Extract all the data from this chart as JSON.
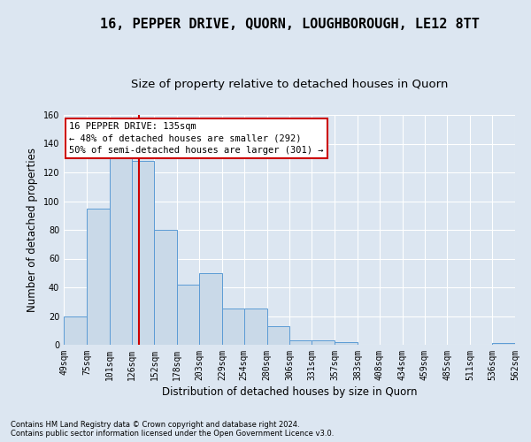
{
  "title": "16, PEPPER DRIVE, QUORN, LOUGHBOROUGH, LE12 8TT",
  "subtitle": "Size of property relative to detached houses in Quorn",
  "xlabel": "Distribution of detached houses by size in Quorn",
  "ylabel": "Number of detached properties",
  "footnote": "Contains HM Land Registry data © Crown copyright and database right 2024.\nContains public sector information licensed under the Open Government Licence v3.0.",
  "bar_edges": [
    49,
    75,
    101,
    126,
    152,
    178,
    203,
    229,
    254,
    280,
    306,
    331,
    357,
    383,
    408,
    434,
    459,
    485,
    511,
    536,
    562
  ],
  "bar_heights": [
    20,
    95,
    130,
    128,
    80,
    42,
    50,
    25,
    25,
    13,
    3,
    3,
    2,
    0,
    0,
    0,
    0,
    0,
    0,
    1
  ],
  "bar_color": "#c9d9e8",
  "bar_edge_color": "#5b9bd5",
  "vline_x": 135,
  "vline_color": "#cc0000",
  "annotation_line1": "16 PEPPER DRIVE: 135sqm",
  "annotation_line2": "← 48% of detached houses are smaller (292)",
  "annotation_line3": "50% of semi-detached houses are larger (301) →",
  "annotation_box_color": "#ffffff",
  "annotation_box_edge": "#cc0000",
  "ylim": [
    0,
    160
  ],
  "yticks": [
    0,
    20,
    40,
    60,
    80,
    100,
    120,
    140,
    160
  ],
  "bg_color": "#dce6f1",
  "plot_bg_color": "#dce6f1",
  "title_fontsize": 11,
  "subtitle_fontsize": 9.5,
  "axis_label_fontsize": 8.5,
  "tick_fontsize": 7,
  "footnote_fontsize": 6
}
